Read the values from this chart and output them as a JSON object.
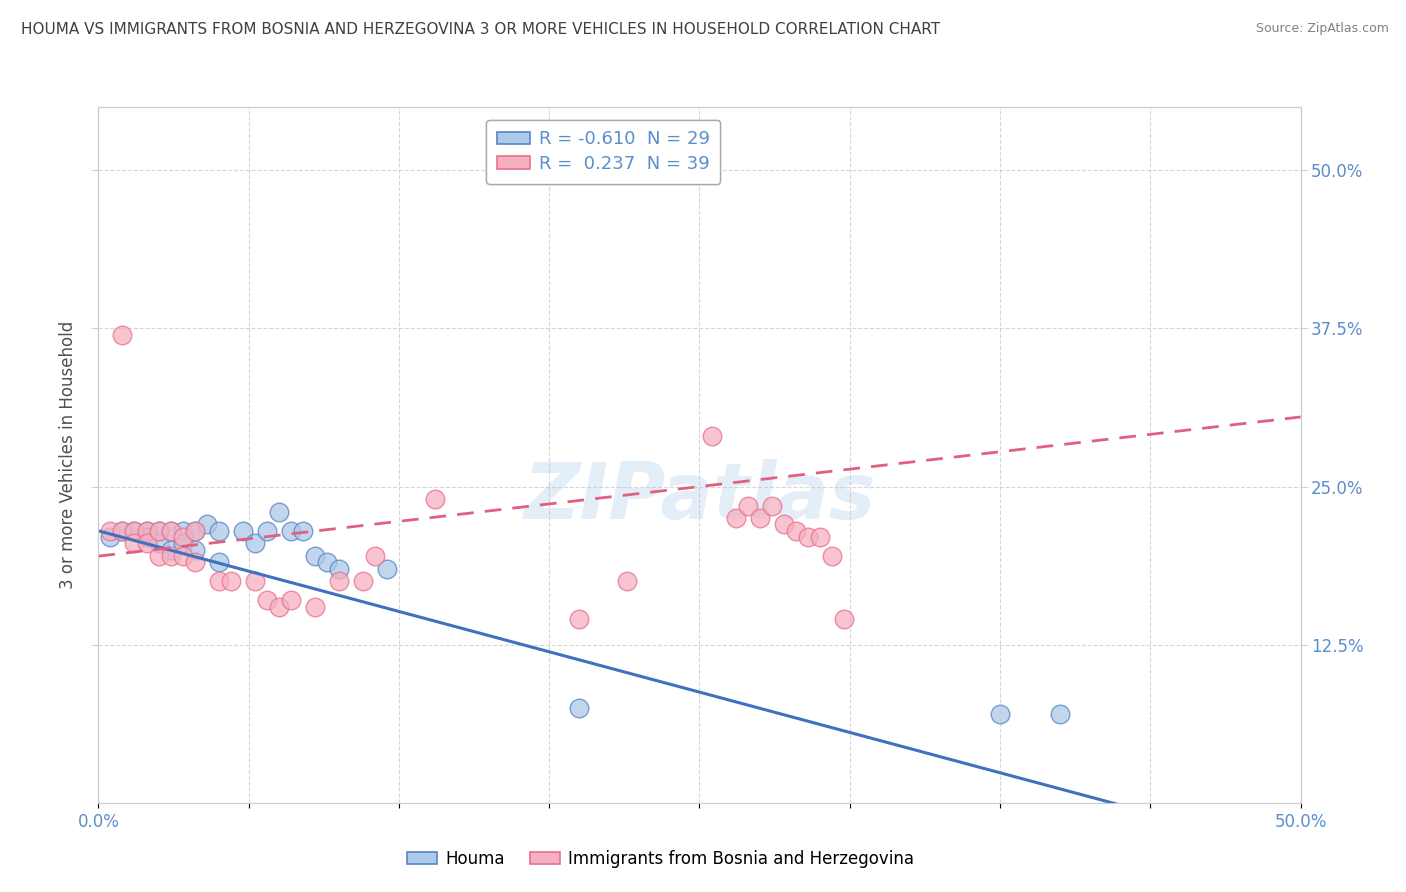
{
  "title": "HOUMA VS IMMIGRANTS FROM BOSNIA AND HERZEGOVINA 3 OR MORE VEHICLES IN HOUSEHOLD CORRELATION CHART",
  "source": "Source: ZipAtlas.com",
  "ylabel": "3 or more Vehicles in Household",
  "xlim": [
    0.0,
    0.5
  ],
  "ylim": [
    0.0,
    0.55
  ],
  "xtick_vals": [
    0.0,
    0.0625,
    0.125,
    0.1875,
    0.25,
    0.3125,
    0.375,
    0.4375,
    0.5
  ],
  "xtick_labels_show": {
    "0.0": "0.0%",
    "0.50": "50.0%"
  },
  "ytick_vals_right": [
    0.125,
    0.25,
    0.375,
    0.5
  ],
  "ytick_labels_right": [
    "12.5%",
    "25.0%",
    "37.5%",
    "50.0%"
  ],
  "legend_blue_label": "R = -0.610  N = 29",
  "legend_pink_label": "R =  0.237  N = 39",
  "watermark": "ZIPatlas",
  "blue_fill": "#adc8e8",
  "pink_fill": "#f5b0c0",
  "blue_edge": "#5585c5",
  "pink_edge": "#e87090",
  "blue_line_color": "#4070c0",
  "pink_line_color": "#e06080",
  "blue_scatter": [
    [
      0.005,
      0.21
    ],
    [
      0.01,
      0.215
    ],
    [
      0.015,
      0.215
    ],
    [
      0.02,
      0.215
    ],
    [
      0.02,
      0.21
    ],
    [
      0.025,
      0.215
    ],
    [
      0.025,
      0.205
    ],
    [
      0.03,
      0.215
    ],
    [
      0.03,
      0.2
    ],
    [
      0.035,
      0.215
    ],
    [
      0.035,
      0.205
    ],
    [
      0.04,
      0.215
    ],
    [
      0.04,
      0.2
    ],
    [
      0.045,
      0.22
    ],
    [
      0.05,
      0.215
    ],
    [
      0.05,
      0.19
    ],
    [
      0.06,
      0.215
    ],
    [
      0.065,
      0.205
    ],
    [
      0.07,
      0.215
    ],
    [
      0.075,
      0.23
    ],
    [
      0.08,
      0.215
    ],
    [
      0.085,
      0.215
    ],
    [
      0.09,
      0.195
    ],
    [
      0.095,
      0.19
    ],
    [
      0.1,
      0.185
    ],
    [
      0.12,
      0.185
    ],
    [
      0.2,
      0.075
    ],
    [
      0.375,
      0.07
    ],
    [
      0.4,
      0.07
    ]
  ],
  "pink_scatter": [
    [
      0.005,
      0.215
    ],
    [
      0.01,
      0.215
    ],
    [
      0.01,
      0.37
    ],
    [
      0.015,
      0.215
    ],
    [
      0.015,
      0.205
    ],
    [
      0.02,
      0.215
    ],
    [
      0.02,
      0.205
    ],
    [
      0.025,
      0.215
    ],
    [
      0.025,
      0.195
    ],
    [
      0.03,
      0.215
    ],
    [
      0.03,
      0.195
    ],
    [
      0.035,
      0.21
    ],
    [
      0.035,
      0.195
    ],
    [
      0.04,
      0.215
    ],
    [
      0.04,
      0.19
    ],
    [
      0.05,
      0.175
    ],
    [
      0.055,
      0.175
    ],
    [
      0.065,
      0.175
    ],
    [
      0.07,
      0.16
    ],
    [
      0.075,
      0.155
    ],
    [
      0.08,
      0.16
    ],
    [
      0.09,
      0.155
    ],
    [
      0.1,
      0.175
    ],
    [
      0.11,
      0.175
    ],
    [
      0.115,
      0.195
    ],
    [
      0.14,
      0.24
    ],
    [
      0.2,
      0.145
    ],
    [
      0.22,
      0.175
    ],
    [
      0.255,
      0.29
    ],
    [
      0.265,
      0.225
    ],
    [
      0.27,
      0.235
    ],
    [
      0.275,
      0.225
    ],
    [
      0.28,
      0.235
    ],
    [
      0.285,
      0.22
    ],
    [
      0.29,
      0.215
    ],
    [
      0.295,
      0.21
    ],
    [
      0.3,
      0.21
    ],
    [
      0.305,
      0.195
    ],
    [
      0.31,
      0.145
    ]
  ],
  "blue_line_x": [
    0.0,
    0.5
  ],
  "blue_line_y": [
    0.215,
    -0.04
  ],
  "pink_line_x": [
    0.0,
    0.5
  ],
  "pink_line_y": [
    0.195,
    0.305
  ],
  "background_color": "#ffffff",
  "grid_color": "#cccccc",
  "title_color": "#404040",
  "source_color": "#808080",
  "axis_label_color": "#505050",
  "tick_color": "#5a8fcc",
  "legend_bottom_blue": "Houma",
  "legend_bottom_pink": "Immigrants from Bosnia and Herzegovina"
}
